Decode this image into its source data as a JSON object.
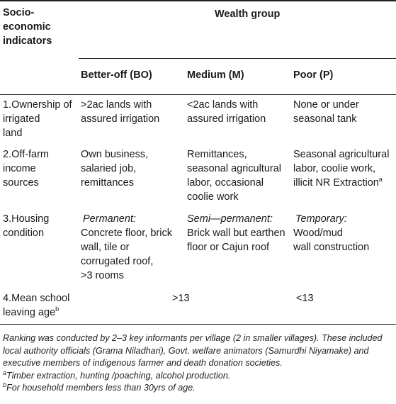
{
  "header": {
    "indicator_label": [
      "Socio-",
      "economic",
      "indicators"
    ],
    "group_label": "Wealth group",
    "columns": [
      "Better-off (BO)",
      "Medium (M)",
      "Poor (P)"
    ]
  },
  "rows": [
    {
      "indicator": [
        "1.Ownership",
        "of",
        "irrigated",
        "land"
      ],
      "bo": [
        ">2ac lands with",
        "assured irrigation"
      ],
      "m": [
        "<2ac lands with",
        "assured irrigation"
      ],
      "p": [
        "None or under",
        "seasonal tank"
      ]
    },
    {
      "indicator": [
        "2.Off-farm",
        "income",
        "sources"
      ],
      "bo": [
        "Own business,",
        "salaried job,",
        "remittances"
      ],
      "m": [
        "Remittances,",
        "seasonal agricultural",
        "labor, occasional",
        "coolie work"
      ],
      "p": [
        "Seasonal agricultural",
        "labor, coolie work,",
        "illicit NR Extraction"
      ],
      "p_sup": "a"
    },
    {
      "indicator": [
        "3.Housing",
        "condition"
      ],
      "bo_head": "Permanent:",
      "bo": [
        "Concrete floor, brick",
        "wall, tile or",
        "corrugated roof,",
        ">3 rooms"
      ],
      "m_head": "Semi—permanent:",
      "m": [
        "Brick wall but earthen",
        "floor or Cajun roof"
      ],
      "p_head": "Temporary:",
      "p": [
        "Wood/mud",
        "wall construction"
      ]
    },
    {
      "indicator": [
        "4.Mean school",
        "leaving age"
      ],
      "indicator_sup": "b",
      "bo_m": ">13",
      "p": "<13"
    }
  ],
  "notes": {
    "main": "Ranking was conducted by 2–3 key informants per village (2 in smaller villages). These included local authority officials (Grama Niladhari), Govt. welfare animators (Samurdhi Niyamake) and executive members of indigenous farmer and death donation societies.",
    "a_mark": "a",
    "a_text": "Timber extraction, hunting /poaching, alcohol production.",
    "b_mark": "b",
    "b_text": "For household members less than 30yrs of age."
  }
}
